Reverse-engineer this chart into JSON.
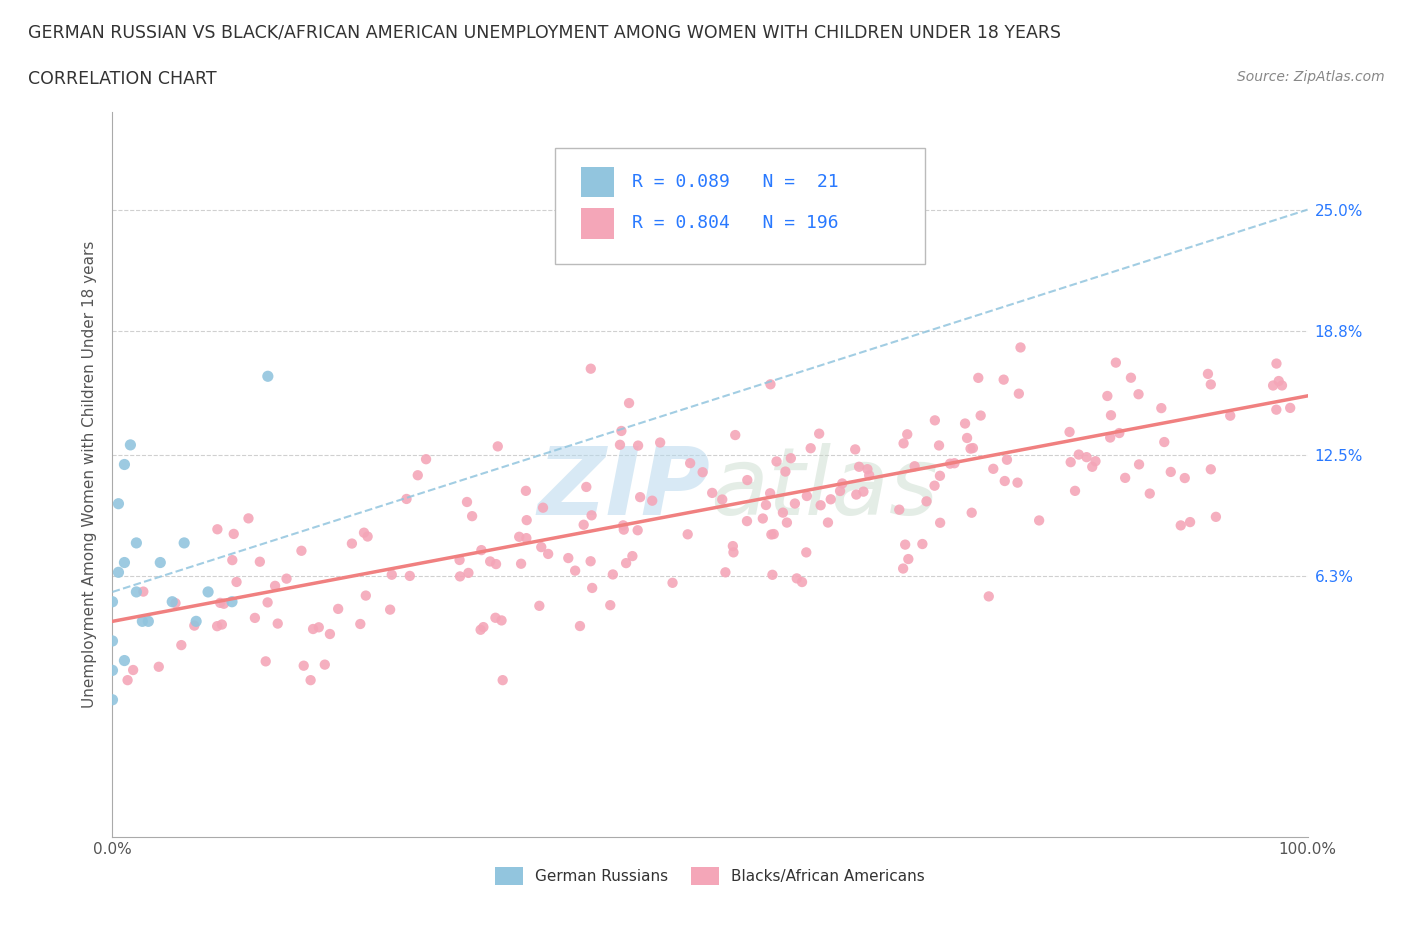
{
  "title": "GERMAN RUSSIAN VS BLACK/AFRICAN AMERICAN UNEMPLOYMENT AMONG WOMEN WITH CHILDREN UNDER 18 YEARS",
  "subtitle": "CORRELATION CHART",
  "source": "Source: ZipAtlas.com",
  "ylabel": "Unemployment Among Women with Children Under 18 years",
  "xlim": [
    0.0,
    1.0
  ],
  "ylim": [
    -0.07,
    0.3
  ],
  "ytick_vals": [
    0.0,
    0.063,
    0.125,
    0.188,
    0.25
  ],
  "ytick_labels": [
    "",
    "6.3%",
    "12.5%",
    "18.8%",
    "25.0%"
  ],
  "xtick_positions": [
    0.0,
    0.1,
    0.2,
    0.3,
    0.4,
    0.5,
    0.6,
    0.7,
    0.8,
    0.9,
    1.0
  ],
  "xtick_labels": [
    "0.0%",
    "",
    "",
    "",
    "",
    "",
    "",
    "",
    "",
    "",
    "100.0%"
  ],
  "background_color": "#ffffff",
  "watermark_text": "ZIPatlas",
  "watermark_color": "#c8dff0",
  "legend_R1": "R = 0.089",
  "legend_N1": "N =  21",
  "legend_R2": "R = 0.804",
  "legend_N2": "N = 196",
  "blue_color": "#92c5de",
  "pink_color": "#f4a6b8",
  "blue_trendline_color": "#92c5de",
  "pink_trendline_color": "#f08080",
  "grid_color": "#d0d0d0",
  "text_color": "#333333",
  "axis_color": "#555555",
  "right_tick_color": "#2979ff",
  "blue_x": [
    0.0,
    0.0,
    0.0,
    0.0,
    0.005,
    0.005,
    0.01,
    0.01,
    0.01,
    0.015,
    0.02,
    0.02,
    0.025,
    0.03,
    0.04,
    0.05,
    0.06,
    0.07,
    0.08,
    0.1,
    0.13
  ],
  "blue_y": [
    0.0,
    0.015,
    0.03,
    0.05,
    0.065,
    0.1,
    0.02,
    0.07,
    0.12,
    0.13,
    0.055,
    0.08,
    0.04,
    0.04,
    0.07,
    0.05,
    0.08,
    0.04,
    0.055,
    0.05,
    0.165
  ],
  "blue_trend_x": [
    0.0,
    0.15
  ],
  "blue_trend_y": [
    0.055,
    0.085
  ],
  "pink_trend_x": [
    0.0,
    1.0
  ],
  "pink_trend_y": [
    0.04,
    0.155
  ]
}
